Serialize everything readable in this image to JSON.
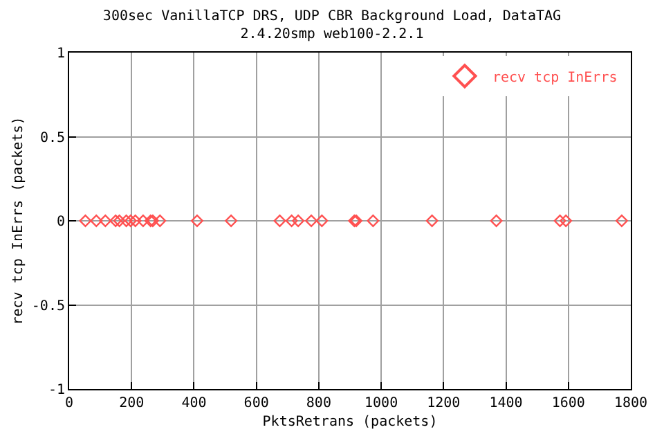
{
  "chart_data": {
    "type": "scatter",
    "title": "300sec VanillaTCP DRS, UDP CBR Background Load, DataTAG\n2.4.20smp web100-2.2.1",
    "xlabel": "PktsRetrans (packets)",
    "ylabel": "recv tcp InErrs (packets)",
    "x": [
      52,
      87,
      116,
      149,
      161,
      183,
      197,
      212,
      237,
      261,
      268,
      291,
      410,
      519,
      675,
      713,
      734,
      776,
      810,
      914,
      920,
      974,
      1163,
      1369,
      1573,
      1592,
      1771
    ],
    "series": [
      {
        "name": "recv tcp InErrs",
        "color": "#ff5050",
        "values": [
          0,
          0,
          0,
          0,
          0,
          0,
          0,
          0,
          0,
          0,
          0,
          0,
          0,
          0,
          0,
          0,
          0,
          0,
          0,
          0,
          0,
          0,
          0,
          0,
          0,
          0,
          0
        ]
      }
    ],
    "xlim": [
      0,
      1800
    ],
    "xticks": [
      0,
      200,
      400,
      600,
      800,
      1000,
      1200,
      1400,
      1600,
      1800
    ],
    "ylim": [
      -1,
      1
    ],
    "yticks": [
      -1,
      -0.5,
      0,
      0.5,
      1
    ],
    "grid": true,
    "legend": "top right",
    "marker": "diamond"
  }
}
